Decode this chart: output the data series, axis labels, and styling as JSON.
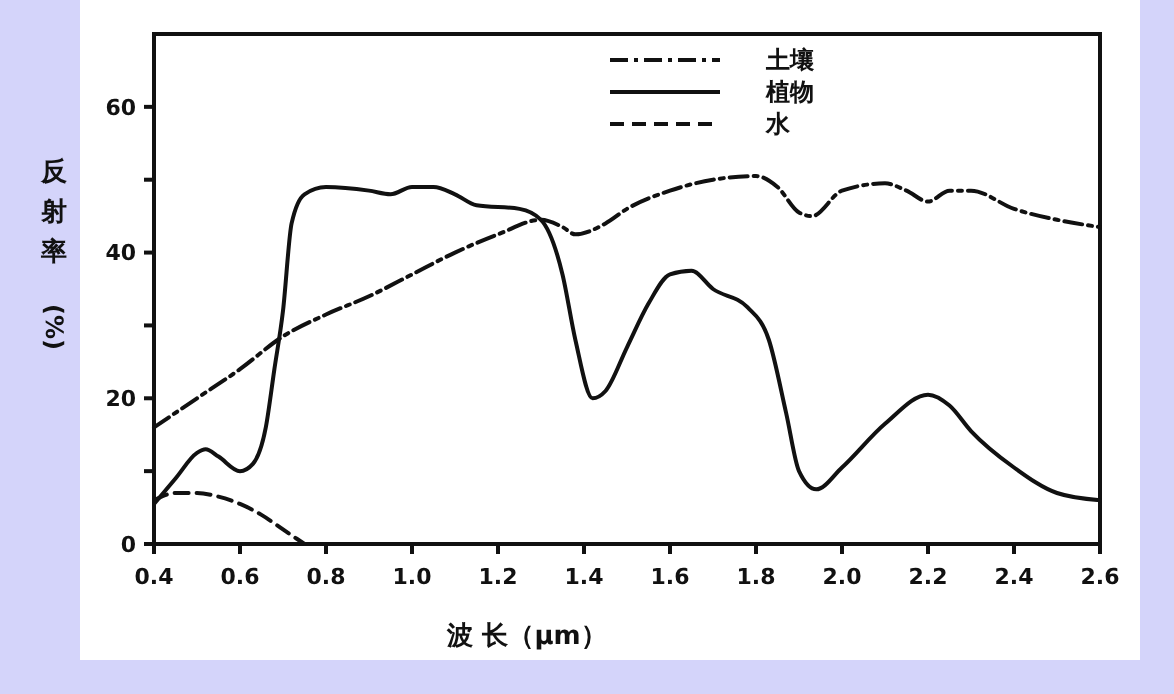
{
  "chart_data": {
    "type": "line",
    "xlabel": "波 长（μm）",
    "ylabel": "反射率(%)",
    "xlim": [
      0.4,
      2.6
    ],
    "ylim": [
      0,
      70
    ],
    "xticks": [
      {
        "value": 0.4,
        "label": "0.4"
      },
      {
        "value": 0.6,
        "label": "0.6"
      },
      {
        "value": 0.8,
        "label": "0.8"
      },
      {
        "value": 1.0,
        "label": "1.0"
      },
      {
        "value": 1.2,
        "label": "1.2"
      },
      {
        "value": 1.4,
        "label": "1.4"
      },
      {
        "value": 1.6,
        "label": "1.6"
      },
      {
        "value": 1.8,
        "label": "1.8"
      },
      {
        "value": 2.0,
        "label": "2.0"
      },
      {
        "value": 2.2,
        "label": "2.2"
      },
      {
        "value": 2.4,
        "label": "2.4"
      },
      {
        "value": 2.6,
        "label": "2.6"
      }
    ],
    "yticks": [
      0,
      {
        "value": 10,
        "label": null
      },
      20,
      {
        "value": 30,
        "label": null
      },
      40,
      {
        "value": 50,
        "label": null
      },
      60
    ],
    "legend": "top right",
    "grid": false,
    "marker": "none",
    "series": [
      {
        "name": "土壤",
        "color": "#111111",
        "line_style": "dashdot",
        "x": [
          0.4,
          0.5,
          0.6,
          0.7,
          0.8,
          0.9,
          1.0,
          1.1,
          1.2,
          1.3,
          1.35,
          1.38,
          1.45,
          1.5,
          1.6,
          1.7,
          1.8,
          1.85,
          1.9,
          1.93,
          2.0,
          2.1,
          2.15,
          2.2,
          2.25,
          2.3,
          2.4,
          2.5,
          2.6
        ],
        "values": [
          16,
          20,
          24,
          28.5,
          31.5,
          34,
          37,
          40,
          42.5,
          44.5,
          43.5,
          42.5,
          44,
          46,
          48.5,
          50,
          50.5,
          49,
          45.5,
          45,
          48.5,
          49.5,
          48.5,
          47,
          48.5,
          48.5,
          46,
          44.5,
          43.5
        ]
      },
      {
        "name": "植物",
        "color": "#111111",
        "line_style": "solid",
        "x": [
          0.4,
          0.45,
          0.5,
          0.52,
          0.55,
          0.6,
          0.63,
          0.66,
          0.68,
          0.7,
          0.72,
          0.75,
          0.8,
          0.9,
          0.95,
          1.0,
          1.05,
          1.1,
          1.15,
          1.25,
          1.3,
          1.35,
          1.38,
          1.42,
          1.45,
          1.5,
          1.55,
          1.6,
          1.65,
          1.7,
          1.78,
          1.83,
          1.87,
          1.9,
          1.94,
          2.0,
          2.1,
          2.2,
          2.25,
          2.3,
          2.4,
          2.5,
          2.6
        ],
        "values": [
          5.5,
          9,
          12.5,
          13,
          12,
          10,
          11,
          16,
          24,
          32,
          44,
          48,
          49,
          48.5,
          48,
          49,
          49,
          48,
          46.5,
          46,
          44.5,
          37,
          28,
          20,
          21,
          27,
          33,
          37,
          37.5,
          35,
          32.5,
          28,
          18,
          10,
          7.5,
          10.5,
          16.5,
          20.5,
          19,
          15.5,
          10.5,
          7,
          6
        ]
      },
      {
        "name": "水",
        "color": "#111111",
        "line_style": "dashed",
        "x": [
          0.4,
          0.45,
          0.5,
          0.55,
          0.6,
          0.65,
          0.7,
          0.75
        ],
        "values": [
          6,
          7,
          7,
          6.5,
          5.5,
          4,
          2,
          0
        ]
      }
    ]
  }
}
